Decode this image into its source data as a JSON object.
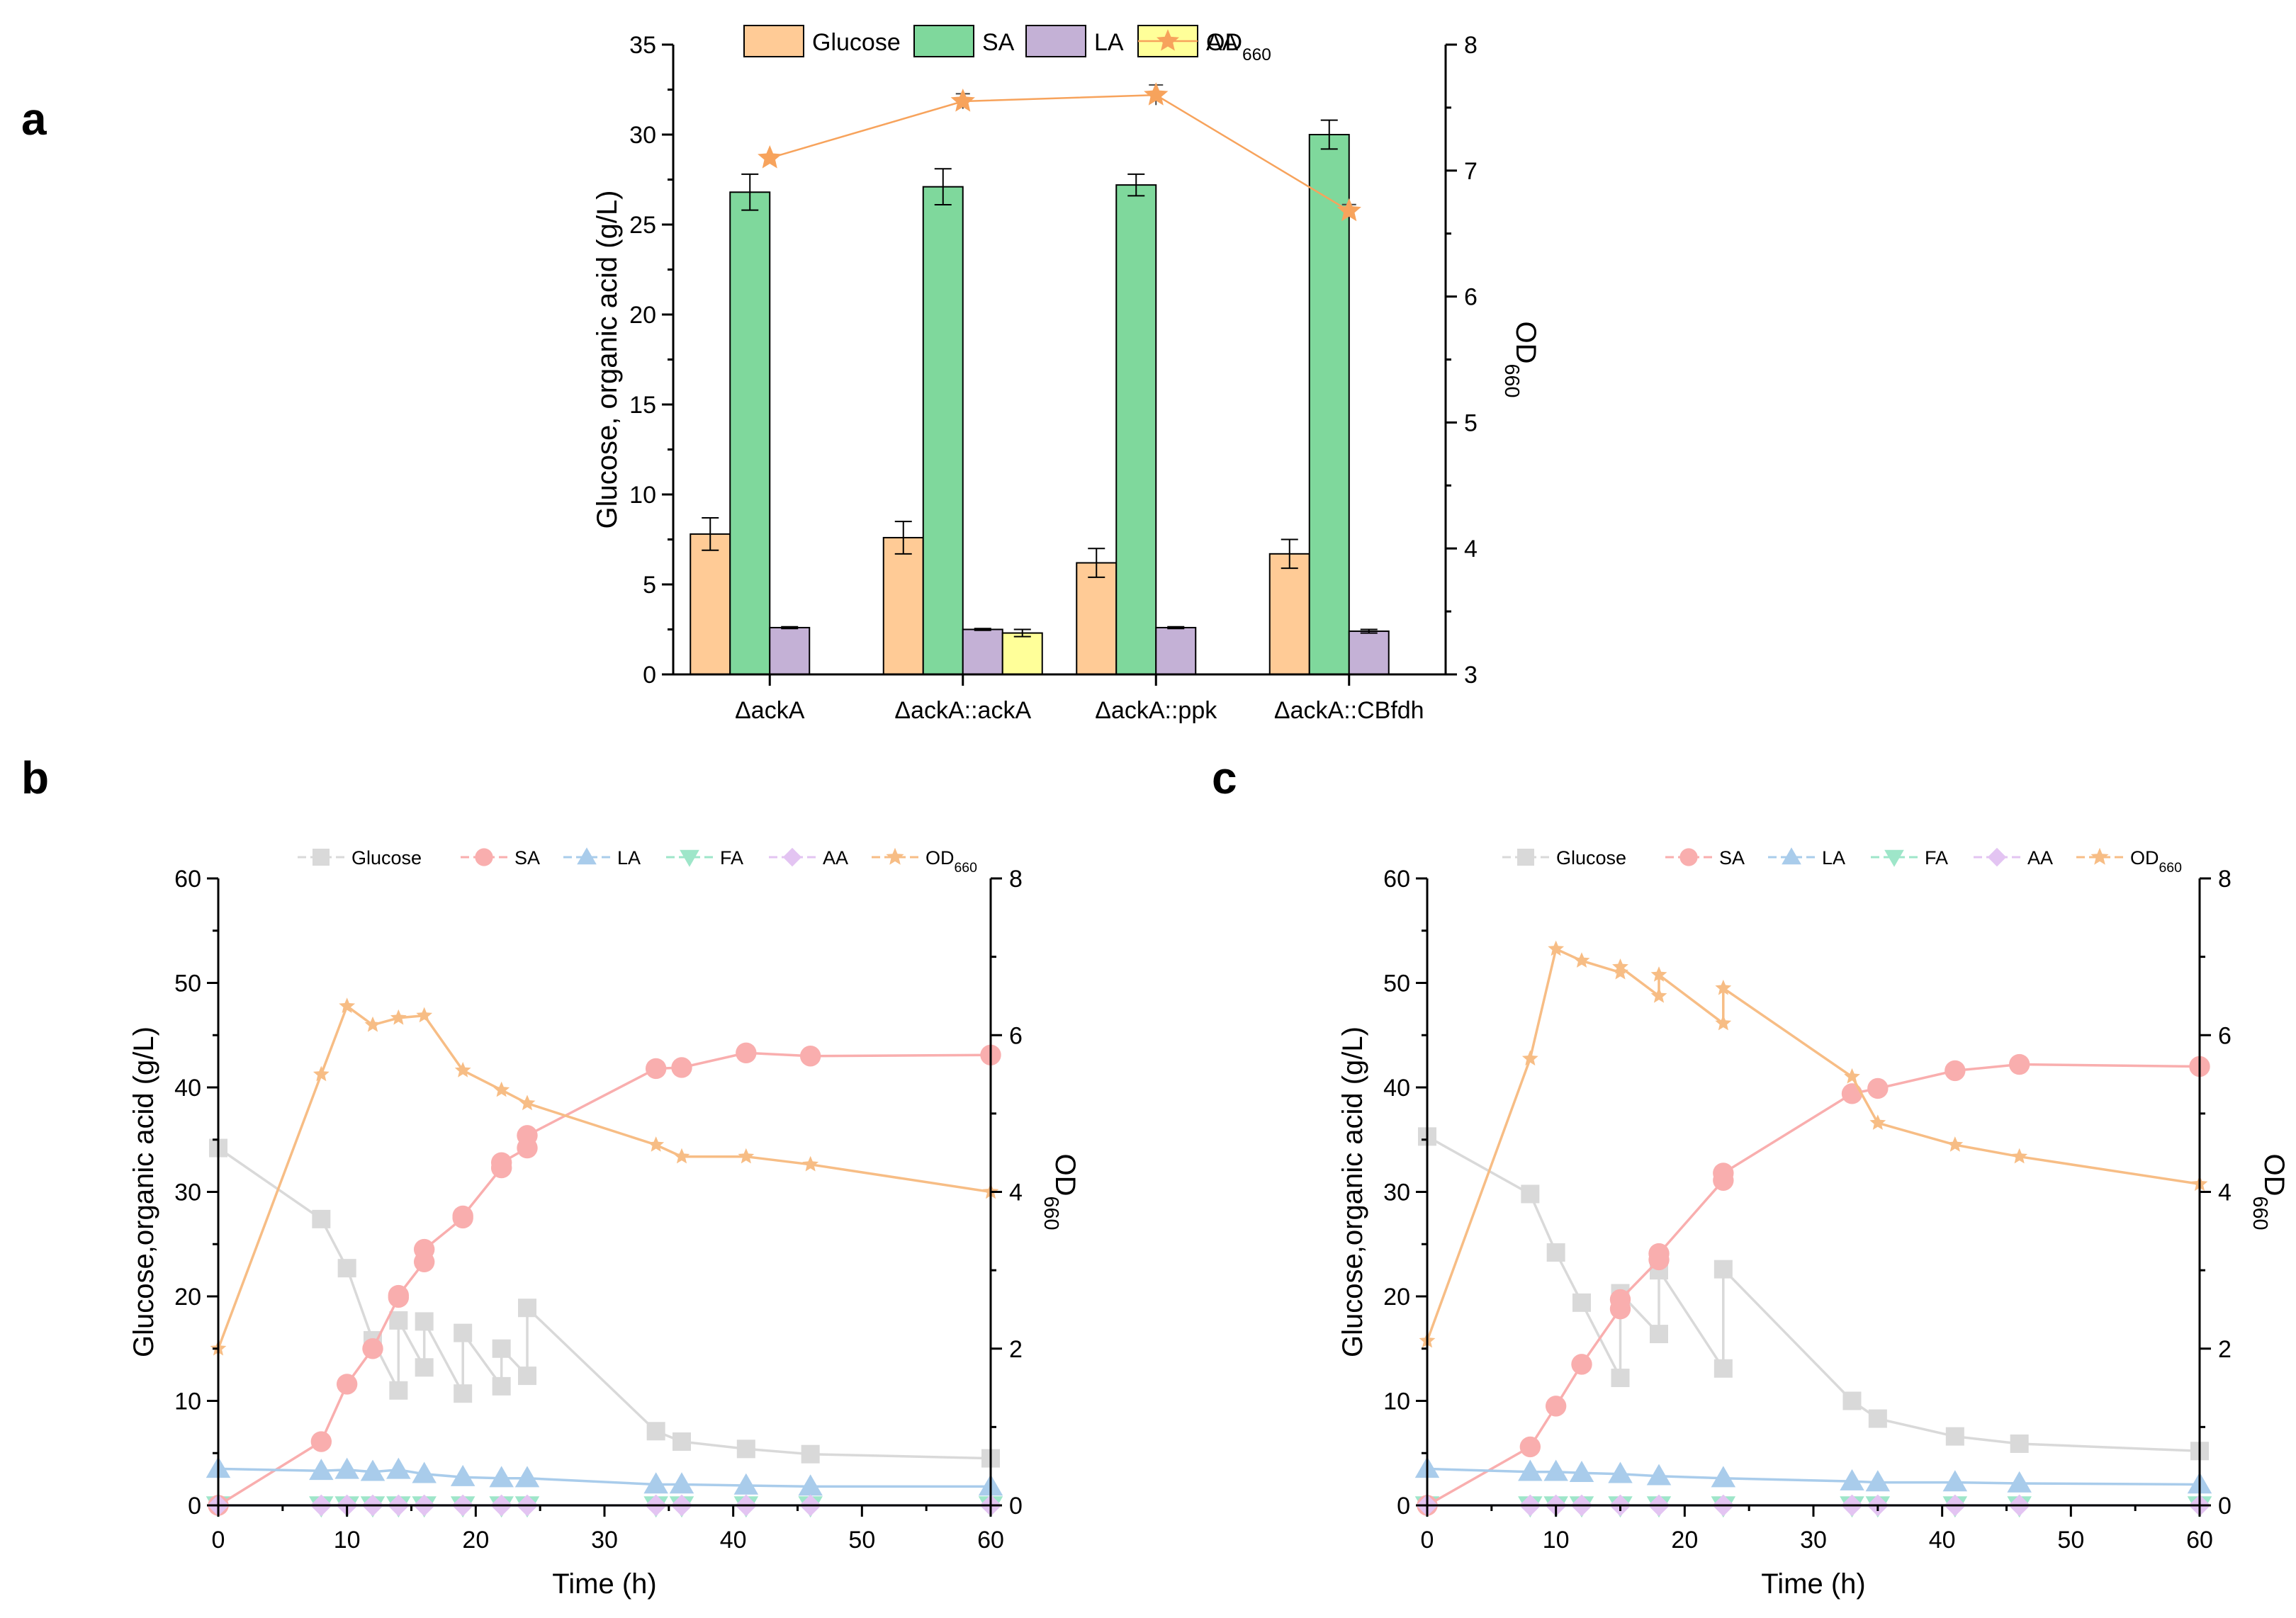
{
  "figure": {
    "panels": [
      {
        "key": "a",
        "label": "a"
      },
      {
        "key": "b",
        "label": "b"
      },
      {
        "key": "c",
        "label": "c"
      }
    ]
  },
  "colors": {
    "glucose_bar": "#FFCB96",
    "sa_bar": "#7FD89C",
    "la_bar": "#C4B1D6",
    "aa_bar": "#FFFF99",
    "od_line": "#F7A35C",
    "glucose_line": "#D9D9D9",
    "sa_line": "#F9AEAE",
    "la_line": "#A9CCEB",
    "fa_line": "#9EE6C9",
    "aa_line": "#E3C4F2",
    "od_series": "#F7BD85"
  },
  "chart_data": [
    {
      "panel": "a",
      "type": "bar",
      "categories": [
        "ΔackA",
        "ΔackA::ackA",
        "ΔackA::ppk",
        "ΔackA::CBfdh"
      ],
      "series": [
        {
          "name": "Glucose",
          "values": [
            7.8,
            7.6,
            6.2,
            6.7
          ],
          "errors": [
            0.9,
            0.9,
            0.8,
            0.8
          ]
        },
        {
          "name": "SA",
          "values": [
            26.8,
            27.1,
            27.2,
            30.0
          ],
          "errors": [
            1.0,
            1.0,
            0.6,
            0.8
          ]
        },
        {
          "name": "LA",
          "values": [
            2.6,
            2.5,
            2.6,
            2.4
          ],
          "errors": [
            0.05,
            0.05,
            0.05,
            0.1
          ]
        },
        {
          "name": "AA",
          "values": [
            0,
            2.3,
            0,
            0
          ],
          "errors": [
            0,
            0.2,
            0,
            0
          ]
        }
      ],
      "line_series": {
        "name": "OD660",
        "axis": "right",
        "values": [
          7.1,
          7.55,
          7.6,
          6.68
        ],
        "errors": [
          0.02,
          0.06,
          0.08,
          0.05
        ]
      },
      "legend": [
        "Glucose",
        "SA",
        "LA",
        "AA",
        "OD660"
      ],
      "ylabel": "Glucose, organic acid (g/L)",
      "y2label": "OD660",
      "ylim": [
        0,
        35
      ],
      "y2lim": [
        3,
        8
      ],
      "yticks": [
        0,
        5,
        10,
        15,
        20,
        25,
        30,
        35
      ],
      "y2ticks": [
        3,
        4,
        5,
        6,
        7,
        8
      ]
    },
    {
      "panel": "b",
      "type": "line",
      "xlabel": "Time (h)",
      "ylabel": "Glucose,organic acid (g/L)",
      "y2label": "OD660",
      "xlim": [
        0,
        60
      ],
      "ylim": [
        0,
        60
      ],
      "y2lim": [
        0,
        8
      ],
      "xticks": [
        0,
        10,
        20,
        30,
        40,
        50,
        60
      ],
      "yticks": [
        0,
        10,
        20,
        30,
        40,
        50,
        60
      ],
      "y2ticks": [
        0,
        2,
        4,
        6,
        8
      ],
      "legend": [
        "Glucose",
        "SA",
        "LA",
        "FA",
        "AA",
        "OD660"
      ],
      "series": [
        {
          "name": "Glucose",
          "marker": "square",
          "x": [
            0,
            8,
            10,
            12,
            14,
            14,
            16,
            16,
            19,
            19,
            22,
            22,
            24,
            24,
            34,
            36,
            41,
            46,
            60
          ],
          "y": [
            34.2,
            27.4,
            22.7,
            15.8,
            11.0,
            17.7,
            13.2,
            17.6,
            10.7,
            16.5,
            11.4,
            15.0,
            12.4,
            18.9,
            7.1,
            6.1,
            5.4,
            4.9,
            4.5
          ]
        },
        {
          "name": "SA",
          "marker": "circle",
          "x": [
            0,
            8,
            10,
            12,
            14,
            14,
            16,
            16,
            19,
            19,
            22,
            22,
            24,
            24,
            34,
            36,
            41,
            46,
            60
          ],
          "y": [
            0,
            6.1,
            11.6,
            15.0,
            19.9,
            20.1,
            23.3,
            24.5,
            27.5,
            27.7,
            32.3,
            32.8,
            34.2,
            35.4,
            41.8,
            41.9,
            43.3,
            43.0,
            43.1
          ]
        },
        {
          "name": "LA",
          "marker": "triangle-up",
          "x": [
            0,
            8,
            10,
            12,
            14,
            16,
            19,
            22,
            24,
            34,
            36,
            41,
            46,
            60
          ],
          "y": [
            3.5,
            3.3,
            3.4,
            3.2,
            3.4,
            3.0,
            2.7,
            2.6,
            2.6,
            2.0,
            2.0,
            1.9,
            1.8,
            1.8
          ]
        },
        {
          "name": "FA",
          "marker": "triangle-down",
          "x": [
            0,
            8,
            10,
            12,
            14,
            16,
            19,
            22,
            24,
            34,
            36,
            41,
            46,
            60
          ],
          "y": [
            0,
            0,
            0,
            0,
            0,
            0,
            0,
            0,
            0,
            0,
            0,
            0,
            0,
            0
          ]
        },
        {
          "name": "AA",
          "marker": "diamond",
          "x": [
            0,
            8,
            10,
            12,
            14,
            16,
            19,
            22,
            24,
            34,
            36,
            41,
            46,
            60
          ],
          "y": [
            0,
            0,
            0,
            0,
            0,
            0,
            0,
            0,
            0,
            0,
            0,
            0,
            0,
            0
          ]
        },
        {
          "name": "OD660",
          "marker": "star",
          "axis": "right",
          "x": [
            0,
            8,
            10,
            12,
            14,
            16,
            19,
            22,
            24,
            34,
            36,
            41,
            46,
            60
          ],
          "y": [
            2.0,
            5.5,
            6.37,
            6.13,
            6.22,
            6.25,
            5.55,
            5.3,
            5.13,
            4.6,
            4.45,
            4.45,
            4.35,
            4.0
          ]
        }
      ]
    },
    {
      "panel": "c",
      "type": "line",
      "xlabel": "Time (h)",
      "ylabel": "Glucose,organic acid (g/L)",
      "y2label": "OD660",
      "xlim": [
        0,
        60
      ],
      "ylim": [
        0,
        60
      ],
      "y2lim": [
        0,
        8
      ],
      "xticks": [
        0,
        10,
        20,
        30,
        40,
        50,
        60
      ],
      "yticks": [
        0,
        10,
        20,
        30,
        40,
        50,
        60
      ],
      "y2ticks": [
        0,
        2,
        4,
        6,
        8
      ],
      "legend": [
        "Glucose",
        "SA",
        "LA",
        "FA",
        "AA",
        "OD660"
      ],
      "series": [
        {
          "name": "Glucose",
          "marker": "square",
          "x": [
            0,
            8,
            10,
            12,
            15,
            15,
            18,
            18,
            23,
            23,
            33,
            35,
            41,
            46,
            60
          ],
          "y": [
            35.3,
            29.8,
            24.2,
            19.4,
            12.2,
            20.3,
            16.4,
            22.5,
            13.1,
            22.6,
            10.0,
            8.3,
            6.6,
            5.9,
            5.2
          ]
        },
        {
          "name": "SA",
          "marker": "circle",
          "x": [
            0,
            8,
            10,
            12,
            15,
            15,
            18,
            18,
            23,
            23,
            33,
            35,
            41,
            46,
            60
          ],
          "y": [
            0,
            5.6,
            9.5,
            13.5,
            18.8,
            19.7,
            23.5,
            24.1,
            31.1,
            31.8,
            39.4,
            39.9,
            41.6,
            42.2,
            42.0
          ]
        },
        {
          "name": "LA",
          "marker": "triangle-up",
          "x": [
            0,
            8,
            10,
            12,
            15,
            18,
            23,
            33,
            35,
            41,
            46,
            60
          ],
          "y": [
            3.5,
            3.2,
            3.2,
            3.1,
            3.0,
            2.8,
            2.6,
            2.3,
            2.2,
            2.2,
            2.1,
            2.0
          ]
        },
        {
          "name": "FA",
          "marker": "triangle-down",
          "x": [
            0,
            8,
            10,
            12,
            15,
            18,
            23,
            33,
            35,
            41,
            46,
            60
          ],
          "y": [
            0,
            0,
            0,
            0,
            0,
            0,
            0,
            0,
            0,
            0,
            0,
            0
          ]
        },
        {
          "name": "AA",
          "marker": "diamond",
          "x": [
            0,
            8,
            10,
            12,
            15,
            18,
            23,
            33,
            35,
            41,
            46,
            60
          ],
          "y": [
            0,
            0,
            0,
            0,
            0,
            0,
            0,
            0,
            0,
            0,
            0,
            0
          ]
        },
        {
          "name": "OD660",
          "marker": "star",
          "axis": "right",
          "x": [
            0,
            8,
            10,
            12,
            15,
            15,
            18,
            18,
            23,
            23,
            33,
            35,
            41,
            46,
            60
          ],
          "y": [
            2.1,
            5.7,
            7.1,
            6.95,
            6.8,
            6.87,
            6.5,
            6.77,
            6.15,
            6.6,
            5.47,
            4.88,
            4.6,
            4.45,
            4.1
          ]
        }
      ]
    }
  ]
}
